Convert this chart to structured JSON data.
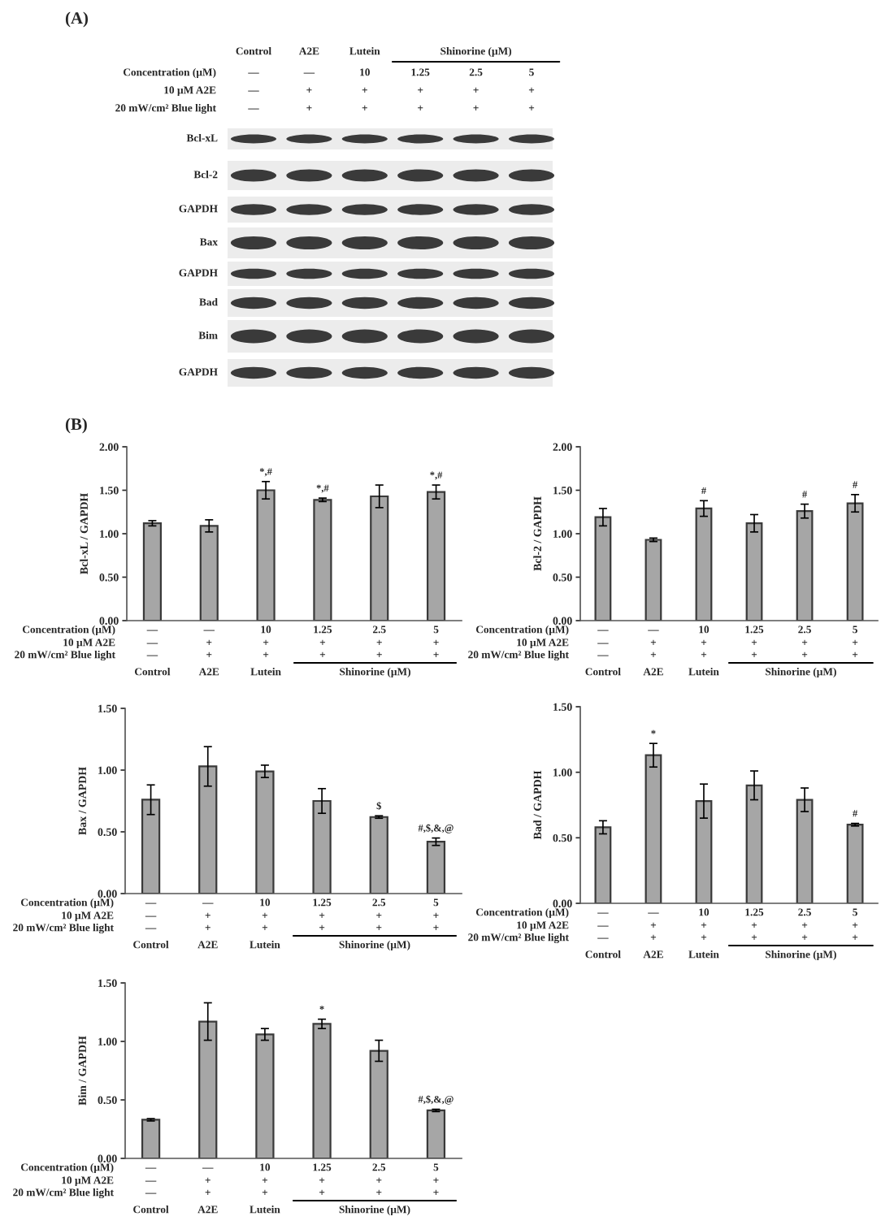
{
  "chart_data": [
    {
      "type": "other",
      "title": "(A)",
      "categories": [
        "Control\n—\n—\n—",
        "A2E\n—\n+\n+",
        "Lutein\n10\n+\n+",
        "1.25\n+\n+",
        "2.5\n+\n+",
        "5\n+\n+"
      ],
      "annotations": [
        "Concentration (µM)",
        "10 µM A2E",
        "20 mW/cm² Blue light",
        "Shinorine (µM)",
        "Bcl-xL",
        "Bcl-2",
        "GAPDH",
        "Bax",
        "GAPDH",
        "Bad",
        "Bim",
        "GAPDH"
      ]
    },
    {
      "type": "bar",
      "title": "(B)",
      "ylabel": "Bcl-xL / GAPDH",
      "categories": [
        "—\n—\n—\nControl",
        "—\n+\n+\nA2E",
        "10\n+\n+\nLutein",
        "1.25\n+\n+",
        "2.5\n+\n+",
        "5\n+\n+"
      ],
      "values": [
        1.12,
        1.09,
        1.5,
        1.39,
        1.43,
        1.48
      ],
      "errors": [
        0.03,
        0.07,
        0.1,
        0.02,
        0.13,
        0.08
      ],
      "value_labels": [
        null,
        null,
        "*,#",
        "*,#",
        null,
        "*,#"
      ],
      "color": "#a6a6a6",
      "ylim": [
        0,
        2
      ],
      "yticks": [
        {
          "value": 0,
          "label": "0.00"
        },
        {
          "value": 0.5,
          "label": "0.50"
        },
        {
          "value": 1,
          "label": "1.00"
        },
        {
          "value": 1.5,
          "label": "1.50"
        },
        {
          "value": 2,
          "label": "2.00"
        }
      ],
      "annotations": [
        "Concentration (µM)",
        "10 µM A2E",
        "20 mW/cm² Blue light",
        "Shinorine (µM)"
      ]
    },
    {
      "type": "bar",
      "ylabel": "Bcl-2 / GAPDH",
      "categories": [
        "—\n—\n—\nControl",
        "—\n+\n+\nA2E",
        "10\n+\n+\nLutein",
        "1.25\n+\n+",
        "2.5\n+\n+",
        "5\n+\n+"
      ],
      "values": [
        1.19,
        0.93,
        1.29,
        1.12,
        1.26,
        1.35
      ],
      "errors": [
        0.1,
        0.02,
        0.09,
        0.1,
        0.08,
        0.1
      ],
      "value_labels": [
        null,
        null,
        "#",
        null,
        "#",
        "#"
      ],
      "color": "#a6a6a6",
      "ylim": [
        0,
        2
      ],
      "yticks": [
        {
          "value": 0,
          "label": "0.00"
        },
        {
          "value": 0.5,
          "label": "0.50"
        },
        {
          "value": 1,
          "label": "1.00"
        },
        {
          "value": 1.5,
          "label": "1.50"
        },
        {
          "value": 2,
          "label": "2.00"
        }
      ],
      "annotations": [
        "Concentration (µM)",
        "10 µM A2E",
        "20 mW/cm² Blue light",
        "Shinorine (µM)"
      ]
    },
    {
      "type": "bar",
      "ylabel": "Bax / GAPDH",
      "categories": [
        "—\n—\n—\nControl",
        "—\n+\n+\nA2E",
        "10\n+\n+\nLutein",
        "1.25\n+\n+",
        "2.5\n+\n+",
        "5\n+\n+"
      ],
      "values": [
        0.76,
        1.03,
        0.99,
        0.75,
        0.62,
        0.42
      ],
      "errors": [
        0.12,
        0.16,
        0.05,
        0.1,
        0.01,
        0.03
      ],
      "value_labels": [
        null,
        null,
        null,
        null,
        "$",
        "#,$,&,@"
      ],
      "color": "#a6a6a6",
      "ylim": [
        0,
        1.5
      ],
      "yticks": [
        {
          "value": 0,
          "label": "0.00"
        },
        {
          "value": 0.5,
          "label": "0.50"
        },
        {
          "value": 1,
          "label": "1.00"
        },
        {
          "value": 1.5,
          "label": "1.50"
        }
      ],
      "annotations": [
        "Concentration (µM)",
        "10 µM A2E",
        "20 mW/cm² Blue light",
        "Shinorine (µM)"
      ]
    },
    {
      "type": "bar",
      "ylabel": "Bad / GAPDH",
      "categories": [
        "—\n—\n—\nControl",
        "—\n+\n+\nA2E",
        "10\n+\n+\nLutein",
        "1.25\n+\n+",
        "2.5\n+\n+",
        "5\n+\n+"
      ],
      "values": [
        0.58,
        1.13,
        0.78,
        0.9,
        0.79,
        0.6
      ],
      "errors": [
        0.05,
        0.09,
        0.13,
        0.11,
        0.09,
        0.01
      ],
      "value_labels": [
        null,
        "*",
        null,
        null,
        null,
        "#"
      ],
      "color": "#a6a6a6",
      "ylim": [
        0,
        1.5
      ],
      "yticks": [
        {
          "value": 0,
          "label": "0.00"
        },
        {
          "value": 0.5,
          "label": "0.50"
        },
        {
          "value": 1,
          "label": "1.00"
        },
        {
          "value": 1.5,
          "label": "1.50"
        }
      ],
      "annotations": [
        "Concentration (µM)",
        "10 µM A2E",
        "20 mW/cm² Blue light",
        "Shinorine (µM)"
      ]
    },
    {
      "type": "bar",
      "ylabel": "Bim / GAPDH",
      "categories": [
        "—\n—\n—\nControl",
        "—\n+\n+\nA2E",
        "10\n+\n+\nLutein",
        "1.25\n+\n+",
        "2.5\n+\n+",
        "5\n+\n+"
      ],
      "values": [
        0.33,
        1.17,
        1.06,
        1.15,
        0.92,
        0.41
      ],
      "errors": [
        0.01,
        0.16,
        0.05,
        0.04,
        0.09,
        0.01
      ],
      "value_labels": [
        null,
        null,
        null,
        "*",
        null,
        "#,$,&,@"
      ],
      "color": "#a6a6a6",
      "ylim": [
        0,
        1.5
      ],
      "yticks": [
        {
          "value": 0,
          "label": "0.00"
        },
        {
          "value": 0.5,
          "label": "0.50"
        },
        {
          "value": 1,
          "label": "1.00"
        },
        {
          "value": 1.5,
          "label": "1.50"
        }
      ],
      "annotations": [
        "Concentration (µM)",
        "10 µM A2E",
        "20 mW/cm² Blue light",
        "Shinorine (µM)"
      ]
    }
  ]
}
